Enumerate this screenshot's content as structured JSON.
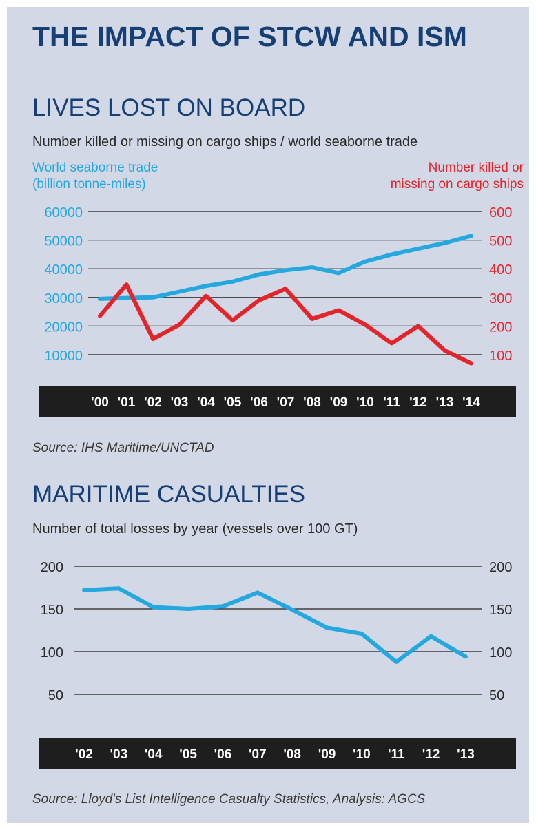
{
  "title": "THE IMPACT OF STCW AND ISM",
  "colors": {
    "background": "#d3d8e6",
    "heading": "#163f76",
    "trade": "#25a8e0",
    "killed": "#e3242b",
    "axisbar": "#1e1e1e"
  },
  "chart_data": [
    {
      "type": "line",
      "title": "LIVES LOST ON BOARD",
      "subtitle": "Number killed or missing on cargo ships / world seaborne trade",
      "legend_left": [
        "World seaborne trade",
        "(billion tonne-miles)"
      ],
      "legend_right": [
        "Number killed or",
        "missing on cargo ships"
      ],
      "x": [
        "'00",
        "'01",
        "'02",
        "'03",
        "'04",
        "'05",
        "'06",
        "'07",
        "'08",
        "'09",
        "'10",
        "'11",
        "'12",
        "'13",
        "'14"
      ],
      "yleft_ticks": [
        "60000",
        "50000",
        "40000",
        "30000",
        "20000",
        "10000"
      ],
      "yright_ticks": [
        "600",
        "500",
        "400",
        "300",
        "200",
        "100"
      ],
      "ylim_left": [
        10000,
        60000
      ],
      "ylim_right": [
        100,
        600
      ],
      "grid": true,
      "series": [
        {
          "name": "World seaborne trade (billion tonne-miles)",
          "axis": "left",
          "values": [
            29500,
            29800,
            30000,
            32000,
            34000,
            35500,
            38000,
            39500,
            40500,
            38500,
            42500,
            45000,
            47000,
            49000,
            51500
          ]
        },
        {
          "name": "Number killed or missing on cargo ships",
          "axis": "right",
          "values": [
            235,
            345,
            155,
            205,
            305,
            220,
            290,
            330,
            225,
            255,
            205,
            140,
            200,
            115,
            70
          ]
        }
      ],
      "source": "Source: IHS Maritime/UNCTAD"
    },
    {
      "type": "line",
      "title": "MARITIME CASUALTIES",
      "subtitle": "Number of total losses by year (vessels over 100 GT)",
      "x": [
        "'02",
        "'03",
        "'04",
        "'05",
        "'06",
        "'07",
        "'08",
        "'09",
        "'10",
        "'11",
        "'12",
        "'13"
      ],
      "y_ticks": [
        "200",
        "150",
        "100",
        "50"
      ],
      "ylim": [
        50,
        200
      ],
      "grid": true,
      "series": [
        {
          "values": [
            172,
            174,
            152,
            150,
            153,
            169,
            149,
            128,
            121,
            88,
            118,
            94
          ]
        }
      ],
      "source": "Source: Lloyd's List Intelligence Casualty Statistics, Analysis: AGCS"
    }
  ]
}
